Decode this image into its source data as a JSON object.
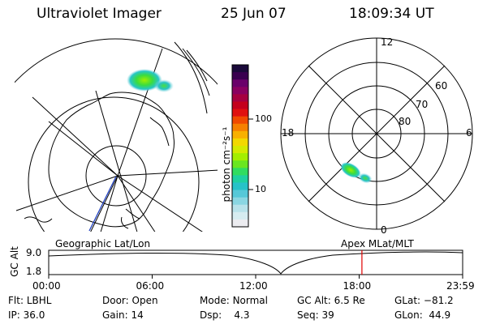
{
  "header": {
    "instrument": "Ultraviolet Imager",
    "date": "25 Jun 07",
    "time": "18:09:34 UT"
  },
  "colorbar": {
    "unit_label": "photon cm⁻²s⁻¹",
    "ticks": [
      "100",
      "10"
    ],
    "colors": [
      "#1a0a3a",
      "#3a0050",
      "#6a006a",
      "#8a0060",
      "#a60040",
      "#c4001c",
      "#e01010",
      "#f04a00",
      "#f68000",
      "#f8b000",
      "#f2d800",
      "#d4ea00",
      "#a4ee00",
      "#6ae620",
      "#30dc60",
      "#1ed0a0",
      "#26c2c8",
      "#56c8d8",
      "#8ad6e2",
      "#b8e2ea",
      "#d6ecf0",
      "#ececf0"
    ]
  },
  "mlt_plot": {
    "hour_labels": {
      "top": "12",
      "left": "18",
      "right": "6",
      "bottom": "0"
    },
    "lat_labels": [
      "60",
      "70",
      "80"
    ]
  },
  "timeline": {
    "ylabel": "GC Alt",
    "ytick_top": "9.0",
    "ytick_bottom": "1.8",
    "title_left": "Geographic Lat/Lon",
    "title_right": "Apex MLat/MLT",
    "x_ticks": [
      "00:00",
      "06:00",
      "12:00",
      "18:00",
      "23:59"
    ],
    "current_time_hours": 18.16,
    "marker_color": "#e00000"
  },
  "info": {
    "filter_label": "Flt:",
    "filter_value": "LBHL",
    "ip_label": "IP:",
    "ip_value": "36.0",
    "door_label": "Door:",
    "door_value": "Open",
    "gain_label": "Gain:",
    "gain_value": "14",
    "mode_label": "Mode:",
    "mode_value": "Normal",
    "dsp_label": "Dsp:",
    "dsp_value": "4.3",
    "gcalt_label": "GC Alt:",
    "gcalt_value": "6.5 Re",
    "seq_label": "Seq:",
    "seq_value": "39",
    "glat_label": "GLat:",
    "glat_value": "−81.2",
    "glon_label": "GLon:",
    "glon_value": "44.9"
  }
}
